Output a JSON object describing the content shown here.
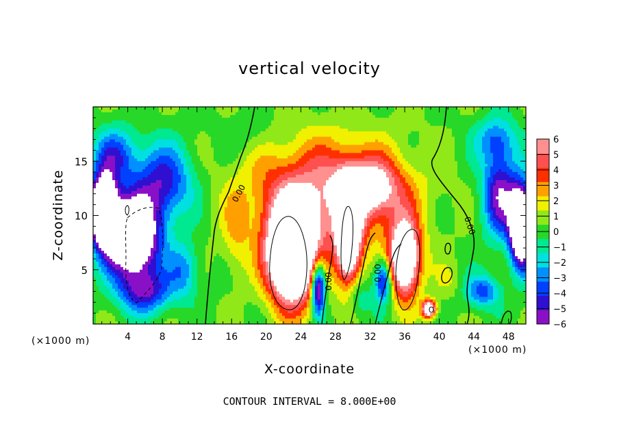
{
  "chart_data": {
    "type": "heatmap",
    "title": "vertical velocity",
    "xlabel": "X-coordinate",
    "ylabel": "Z-coordinate",
    "x_units": "(×1000 m)",
    "xlim": [
      0,
      50
    ],
    "ylim": [
      0,
      20
    ],
    "xticks": [
      4,
      8,
      12,
      16,
      20,
      24,
      28,
      32,
      36,
      40,
      44,
      48
    ],
    "yticks": [
      5,
      10,
      15
    ],
    "colorbar": {
      "ticks": [
        "6",
        "5",
        "4",
        "3",
        "2",
        "1",
        "0",
        "−1",
        "−2",
        "−3",
        "−4",
        "−5",
        "−6"
      ],
      "range": [
        -6,
        6
      ],
      "colors": [
        "#8a10c8",
        "#3010d0",
        "#0040ff",
        "#0090ff",
        "#00e0e0",
        "#00e890",
        "#28d828",
        "#90e818",
        "#f0f000",
        "#ffa000",
        "#ff3000",
        "#ff5050",
        "#ff9090"
      ]
    },
    "contour_labels": [
      "0.00",
      "0.00",
      "0.00",
      "0.00"
    ],
    "contour_interval": "CONTOUR INTERVAL = 8.000E+00",
    "background_value": 0.3,
    "features": [
      {
        "x": 1.2,
        "z": 10.5,
        "sx": 1.5,
        "sz": 3.0,
        "value": -14
      },
      {
        "x": 4.5,
        "z": 8.0,
        "sx": 3.0,
        "sz": 3.5,
        "value": -12
      },
      {
        "x": 8.0,
        "z": 13.0,
        "sx": 3.5,
        "sz": 3.5,
        "value": -5
      },
      {
        "x": 2.5,
        "z": 15.5,
        "sx": 2.5,
        "sz": 2.5,
        "value": -4
      },
      {
        "x": 6.0,
        "z": 3.0,
        "sx": 3.0,
        "sz": 2.0,
        "value": -5
      },
      {
        "x": 10.5,
        "z": 5.0,
        "sx": 1.8,
        "sz": 2.5,
        "value": -3
      },
      {
        "x": 27.0,
        "z": 12.0,
        "sx": 9.0,
        "sz": 5.0,
        "value": 5
      },
      {
        "x": 23.0,
        "z": 6.5,
        "sx": 2.8,
        "sz": 4.5,
        "value": 14
      },
      {
        "x": 29.5,
        "z": 8.0,
        "sx": 1.4,
        "sz": 4.5,
        "value": 10
      },
      {
        "x": 36.0,
        "z": 6.0,
        "sx": 1.8,
        "sz": 3.5,
        "value": 10
      },
      {
        "x": 32.0,
        "z": 12.5,
        "sx": 3.5,
        "sz": 2.5,
        "value": 5
      },
      {
        "x": 26.0,
        "z": 3.5,
        "sx": 0.8,
        "sz": 2.5,
        "value": -9
      },
      {
        "x": 33.5,
        "z": 4.0,
        "sx": 1.0,
        "sz": 2.0,
        "value": -6
      },
      {
        "x": 30.5,
        "z": 2.5,
        "sx": 1.5,
        "sz": 2.0,
        "value": -2
      },
      {
        "x": 38.8,
        "z": 1.4,
        "sx": 0.8,
        "sz": 0.8,
        "value": 9
      },
      {
        "x": 16.5,
        "z": 8.0,
        "sx": 1.5,
        "sz": 4.0,
        "value": 1.5
      },
      {
        "x": 18.0,
        "z": 17.5,
        "sx": 3.0,
        "sz": 2.0,
        "value": -1
      },
      {
        "x": 47.0,
        "z": 12.0,
        "sx": 2.0,
        "sz": 4.0,
        "value": -6
      },
      {
        "x": 49.5,
        "z": 9.0,
        "sx": 1.3,
        "sz": 3.5,
        "value": -13
      },
      {
        "x": 46.5,
        "z": 17.0,
        "sx": 2.5,
        "sz": 2.0,
        "value": -3
      },
      {
        "x": 45.0,
        "z": 3.0,
        "sx": 2.0,
        "sz": 1.5,
        "value": -4
      },
      {
        "x": 41.0,
        "z": 4.0,
        "sx": 1.5,
        "sz": 1.5,
        "value": 1
      }
    ]
  }
}
